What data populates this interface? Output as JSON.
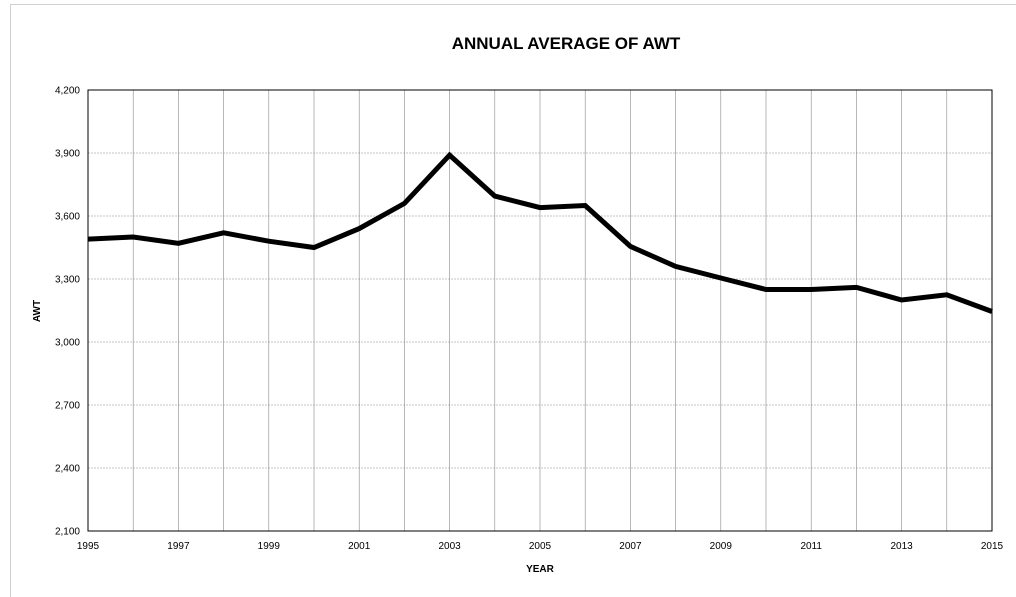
{
  "chart_data": {
    "type": "line",
    "title": "ANNUAL AVERAGE OF AWT",
    "xlabel": "YEAR",
    "ylabel": "AWT",
    "xlim": [
      1995,
      2015
    ],
    "ylim": [
      2100,
      4200
    ],
    "x_ticks": [
      "1995",
      "1997",
      "1999",
      "2001",
      "2003",
      "2005",
      "2007",
      "2009",
      "2011",
      "2013",
      "2015"
    ],
    "y_ticks": [
      "2,100",
      "2,400",
      "2,700",
      "3,000",
      "3,300",
      "3,600",
      "3,900",
      "4,200"
    ],
    "grid": true,
    "legend": "none",
    "line_color": "#000000",
    "series": [
      {
        "x": [
          1995,
          1996,
          1997,
          1998,
          1999,
          2000,
          2001,
          2002,
          2003,
          2004,
          2005,
          2006,
          2007,
          2008,
          2009,
          2010,
          2011,
          2012,
          2013,
          2014,
          2015
        ],
        "values": [
          3490,
          3500,
          3470,
          3520,
          3480,
          3450,
          3540,
          3660,
          3890,
          3695,
          3640,
          3650,
          3455,
          3360,
          3305,
          3250,
          3250,
          3260,
          3200,
          3225,
          3145
        ]
      }
    ]
  }
}
